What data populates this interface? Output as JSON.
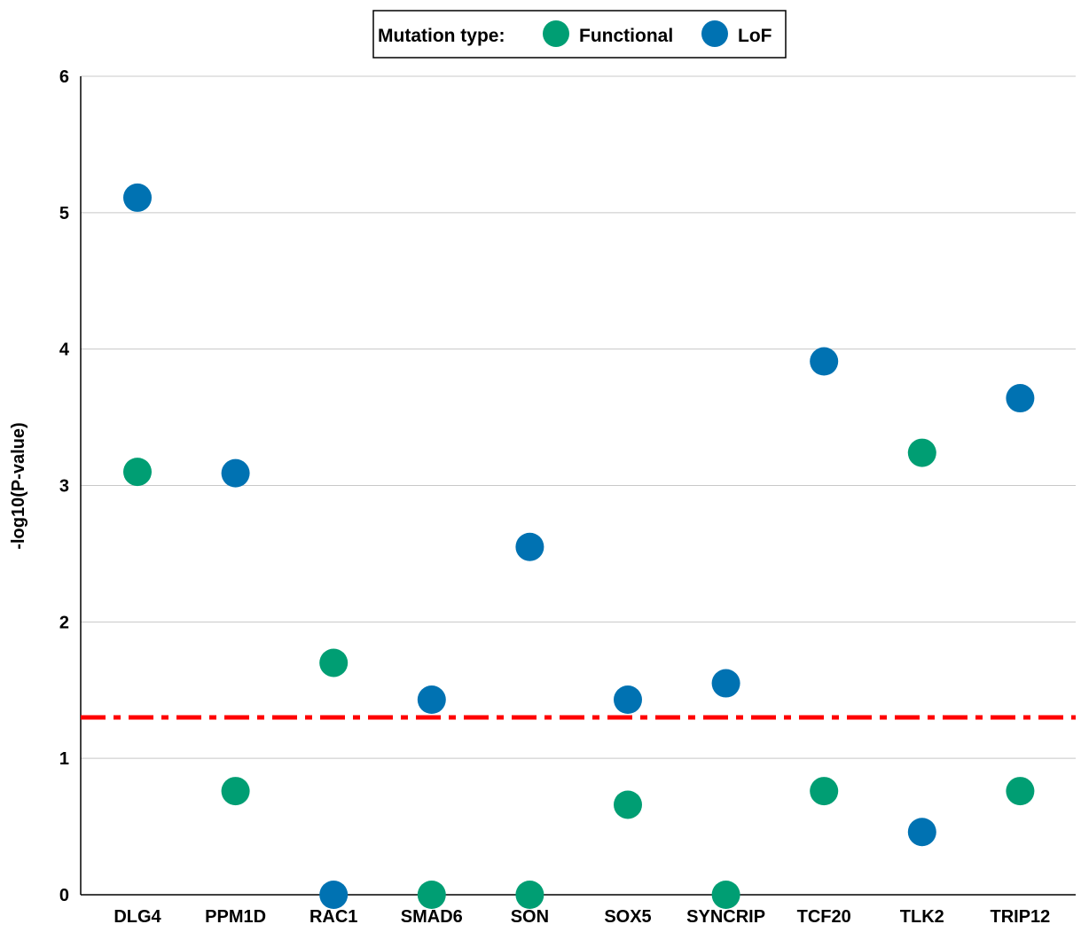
{
  "chart_data": {
    "type": "scatter",
    "title": "",
    "xlabel": "",
    "ylabel": "-log10(P-value)",
    "ylim": [
      0,
      6
    ],
    "yticks": [
      0,
      1,
      2,
      3,
      4,
      5,
      6
    ],
    "grid": true,
    "categories": [
      "DLG4",
      "PPM1D",
      "RAC1",
      "SMAD6",
      "SON",
      "SOX5",
      "SYNCRIP",
      "TCF20",
      "TLK2",
      "TRIP12"
    ],
    "legend": {
      "title": "Mutation type:",
      "position": "top-center"
    },
    "series": [
      {
        "name": "Functional",
        "color": "#009E73",
        "values": [
          3.1,
          0.76,
          1.7,
          0,
          0,
          0.66,
          0,
          0.76,
          3.24,
          0.76
        ]
      },
      {
        "name": "LoF",
        "color": "#0072B2",
        "values": [
          5.11,
          3.09,
          0,
          1.43,
          2.55,
          1.43,
          1.55,
          3.91,
          0.46,
          3.64
        ]
      }
    ],
    "threshold": {
      "value": 1.3,
      "color": "#FF0000",
      "style": "dash-dot"
    }
  }
}
